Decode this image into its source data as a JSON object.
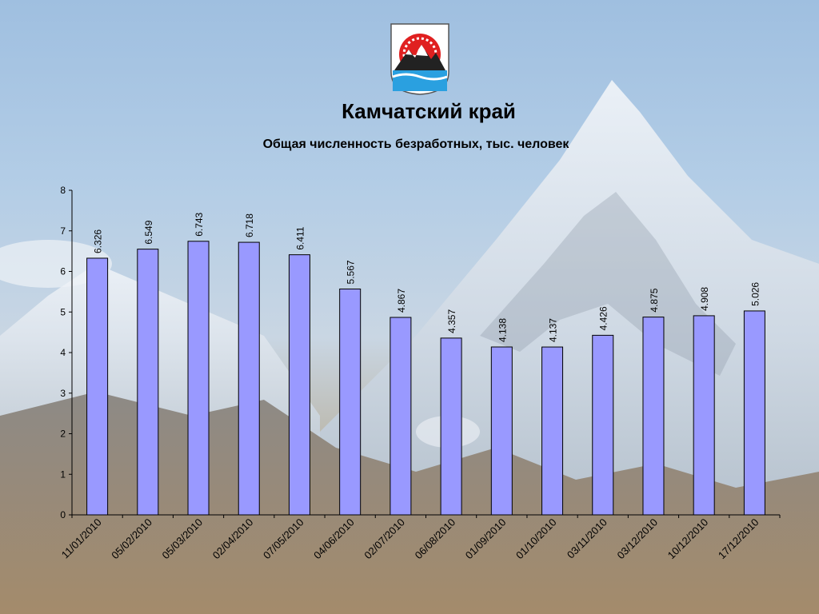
{
  "slide": {
    "title": "Камчатский край",
    "subtitle": "Общая численность безработных, тыс. человек"
  },
  "emblem": {
    "icon": "kamchatka-coat-of-arms-icon"
  },
  "colors": {
    "bar": "#9999FF",
    "bar_stroke": "#000000",
    "axis": "#000000"
  },
  "chart_data": {
    "type": "bar",
    "title": "Общая численность безработных, тыс. человек",
    "xlabel": "",
    "ylabel": "",
    "categories": [
      "11/01/2010",
      "05/02/2010",
      "05/03/2010",
      "02/04/2010",
      "07/05/2010",
      "04/06/2010",
      "02/07/2010",
      "06/08/2010",
      "01/09/2010",
      "01/10/2010",
      "03/11/2010",
      "03/12/2010",
      "10/12/2010",
      "17/12/2010"
    ],
    "values": [
      6.326,
      6.549,
      6.743,
      6.718,
      6.411,
      5.567,
      4.867,
      4.357,
      4.138,
      4.137,
      4.426,
      4.875,
      4.908,
      5.026
    ],
    "data_labels": [
      "6.326",
      "6.549",
      "6.743",
      "6.718",
      "6.411",
      "5.567",
      "4.867",
      "4.357",
      "4.138",
      "4.137",
      "4.426",
      "4.875",
      "4.908",
      "5.026"
    ],
    "ylim": [
      0,
      8
    ],
    "yticks": [
      "0",
      "1",
      "2",
      "3",
      "4",
      "5",
      "6",
      "7",
      "8"
    ],
    "grid": false,
    "legend": "none"
  }
}
